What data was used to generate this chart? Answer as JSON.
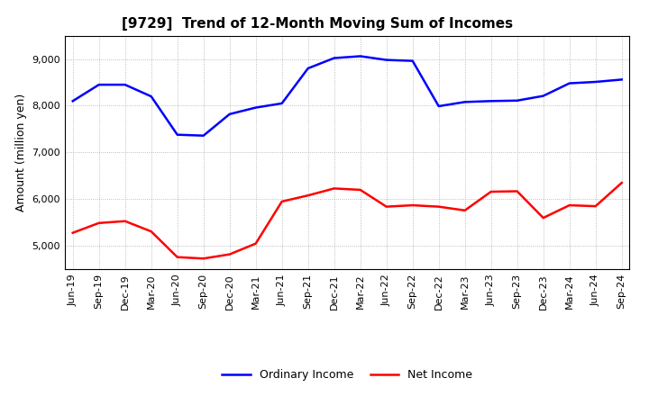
{
  "title": "[9729]  Trend of 12-Month Moving Sum of Incomes",
  "ylabel": "Amount (million yen)",
  "x_labels": [
    "Jun-19",
    "Sep-19",
    "Dec-19",
    "Mar-20",
    "Jun-20",
    "Sep-20",
    "Dec-20",
    "Mar-21",
    "Jun-21",
    "Sep-21",
    "Dec-21",
    "Mar-22",
    "Jun-22",
    "Sep-22",
    "Dec-22",
    "Mar-23",
    "Jun-23",
    "Sep-23",
    "Dec-23",
    "Mar-24",
    "Jun-24",
    "Sep-24"
  ],
  "ordinary_income": [
    8100,
    8450,
    8450,
    8200,
    7380,
    7360,
    7820,
    7960,
    8050,
    8800,
    9020,
    9060,
    8980,
    8960,
    7990,
    8080,
    8100,
    8110,
    8210,
    8480,
    8510,
    8560
  ],
  "net_income": [
    5280,
    5490,
    5530,
    5310,
    4760,
    4730,
    4820,
    5050,
    5950,
    6080,
    6230,
    6200,
    5840,
    5870,
    5840,
    5760,
    6160,
    6170,
    5600,
    5870,
    5850,
    6350
  ],
  "ordinary_color": "#0000ff",
  "net_color": "#ff0000",
  "ylim": [
    4500,
    9500
  ],
  "yticks": [
    5000,
    6000,
    7000,
    8000,
    9000
  ],
  "ytick_labels": [
    "5,000",
    "6,000",
    "7,000",
    "8,000",
    "9,000"
  ],
  "background_color": "#ffffff",
  "plot_bg_color": "#ffffff",
  "grid_color": "#aaaaaa",
  "title_fontsize": 11,
  "axis_label_fontsize": 9,
  "tick_fontsize": 8,
  "legend_fontsize": 9,
  "line_width": 1.8
}
